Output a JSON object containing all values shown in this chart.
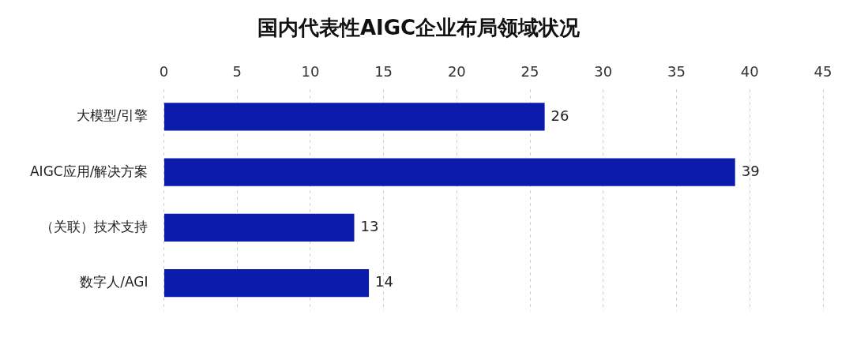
{
  "chart_data": {
    "type": "bar",
    "orientation": "horizontal",
    "title": "国内代表性AIGC企业布局领域状况",
    "categories": [
      "大模型/引擎",
      "AIGC应用/解决方案",
      "（关联）技术支持",
      "数字人/AGI"
    ],
    "values": [
      26,
      39,
      13,
      14
    ],
    "color": "#0b1bab",
    "xlim": [
      0,
      45
    ],
    "xticks": [
      0,
      5,
      10,
      15,
      20,
      25,
      30,
      35,
      40,
      45
    ],
    "grid": "x",
    "data_labels": true
  }
}
